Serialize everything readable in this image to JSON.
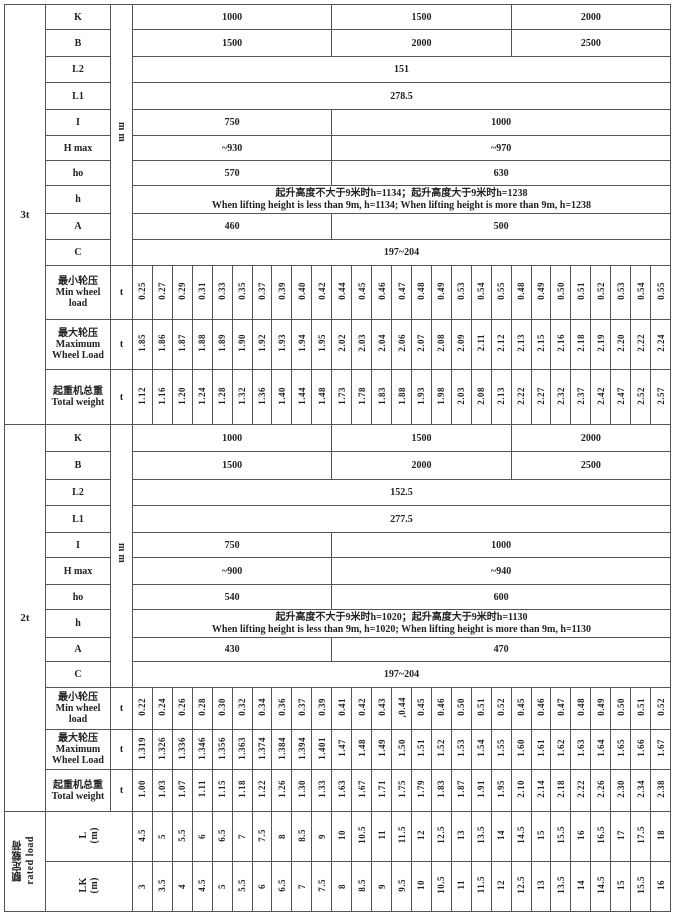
{
  "sections": [
    {
      "load": "3t",
      "unit_mm": "mm",
      "unit_t": "t",
      "dims": [
        {
          "label": "K",
          "values": [
            "1000",
            "1500",
            "2000"
          ]
        },
        {
          "label": "B",
          "values": [
            "1500",
            "2000",
            "2500"
          ]
        },
        {
          "label": "L2",
          "values": [
            "151"
          ]
        },
        {
          "label": "L1",
          "values": [
            "278.5"
          ]
        },
        {
          "label": "I",
          "values": [
            "750",
            "1000"
          ]
        },
        {
          "label": "H max",
          "values": [
            "~930",
            "~970"
          ]
        },
        {
          "label": "ho",
          "values": [
            "570",
            "630"
          ]
        },
        {
          "label": "h",
          "values": [
            "起升高度不大于9米时h=1134；起升高度大于9米时h=1238",
            "When lifting height is less than 9m, h=1134; When lifting height is more than 9m, h=1238"
          ],
          "two_line": true
        },
        {
          "label": "A",
          "values": [
            "460",
            "500"
          ]
        },
        {
          "label": "C",
          "values": [
            "197~204"
          ]
        }
      ],
      "loads": [
        {
          "label_cn": "最小轮压",
          "label_en": "Min wheel load",
          "values": [
            "0.25",
            "0.27",
            "0.29",
            "0.31",
            "0.33",
            "0.35",
            "0.37",
            "0.39",
            "0.40",
            "0.42",
            "0.44",
            "0.45",
            "0.46",
            "0.47",
            "0.48",
            "0.49",
            "0.53",
            "0.54",
            "0.55",
            "0.48",
            "0.49",
            "0.50",
            "0.51",
            "0.52",
            "0.53",
            "0.54",
            "0.55"
          ]
        },
        {
          "label_cn": "最大轮压",
          "label_en": "Maximum Wheel Load",
          "values": [
            "1.85",
            "1.86",
            "1.87",
            "1.88",
            "1.89",
            "1.90",
            "1.92",
            "1.93",
            "1.94",
            "1.95",
            "2.02",
            "2.03",
            "2.04",
            "2.06",
            "2.07",
            "2.08",
            "2.09",
            "2.11",
            "2.12",
            "2.13",
            "2.15",
            "2.16",
            "2.18",
            "2.19",
            "2.20",
            "2.22",
            "2.24"
          ]
        },
        {
          "label_cn": "起重机总重",
          "label_en": "Total weight",
          "values": [
            "1.12",
            "1.16",
            "1.20",
            "1.24",
            "1.28",
            "1.32",
            "1.36",
            "1.40",
            "1.44",
            "1.48",
            "1.73",
            "1.78",
            "1.83",
            "1.88",
            "1.93",
            "1.98",
            "2.03",
            "2.08",
            "2.13",
            "2.22",
            "2.27",
            "2.32",
            "2.37",
            "2.42",
            "2.47",
            "2.52",
            "2.57"
          ]
        }
      ]
    },
    {
      "load": "2t",
      "unit_mm": "mm",
      "unit_t": "t",
      "dims": [
        {
          "label": "K",
          "values": [
            "1000",
            "1500",
            "2000"
          ]
        },
        {
          "label": "B",
          "values": [
            "1500",
            "2000",
            "2500"
          ]
        },
        {
          "label": "L2",
          "values": [
            "152.5"
          ]
        },
        {
          "label": "L1",
          "values": [
            "277.5"
          ]
        },
        {
          "label": "I",
          "values": [
            "750",
            "1000"
          ]
        },
        {
          "label": "H max",
          "values": [
            "~900",
            "~940"
          ]
        },
        {
          "label": "ho",
          "values": [
            "540",
            "600"
          ]
        },
        {
          "label": "h",
          "values": [
            "起升高度不大于9米时h=1020；起升高度大于9米时h=1130",
            "When lifting height is less than 9m, h=1020; When lifting height is more than 9m, h=1130"
          ],
          "two_line": true
        },
        {
          "label": "A",
          "values": [
            "430",
            "470"
          ]
        },
        {
          "label": "C",
          "values": [
            "197~204"
          ]
        }
      ],
      "loads": [
        {
          "label_cn": "最小轮压",
          "label_en": "Min wheel load",
          "values": [
            "0.22",
            "0.24",
            "0.26",
            "0.28",
            "0.30",
            "0.32",
            "0.34",
            "0.36",
            "0.37",
            "0.39",
            "0.41",
            "0.42",
            "0.43",
            ",0.44",
            "0.45",
            "0.46",
            "0.50",
            "0.51",
            "0.52",
            "0.45",
            "0.46",
            "0.47",
            "0.48",
            "0.49",
            "0.50",
            "0.51",
            "0.52"
          ]
        },
        {
          "label_cn": "最大轮压",
          "label_en": "Maximum Wheel Load",
          "values": [
            "1.319",
            "1.326",
            "1.336",
            "1.346",
            "1.356",
            "1.363",
            "1.374",
            "1.384",
            "1.394",
            "1.401",
            "1.47",
            "1.48",
            "1.49",
            "1.50",
            "1.51",
            "1.52",
            "1.53",
            "1.54",
            "1.55",
            "1.60",
            "1.61",
            "1.62",
            "1.63",
            "1.64",
            "1.65",
            "1.66",
            "1.67"
          ]
        },
        {
          "label_cn": "起重机总重",
          "label_en": "Total weight",
          "values": [
            "1.00",
            "1.03",
            "1.07",
            "1.11",
            "1.15",
            "1.18",
            "1.22",
            "1.26",
            "1.30",
            "1.33",
            "1.63",
            "1.67",
            "1.71",
            "1.75",
            "1.79",
            "1.83",
            "1.87",
            "1.91",
            "1.95",
            "2.10",
            "2.14",
            "2.18",
            "2.22",
            "2.26",
            "2.30",
            "2.34",
            "2.38"
          ]
        }
      ]
    }
  ],
  "rated_load": {
    "label_cn": "额定载荷",
    "label_en": "rated load",
    "rows": [
      {
        "label": "L",
        "unit": "(m)",
        "values": [
          "4.5",
          "5",
          "5.5",
          "6",
          "6.5",
          "7",
          "7.5",
          "8",
          "8.5",
          "9",
          "10",
          "10.5",
          "11",
          "11.5",
          "12",
          "12.5",
          "13",
          "13.5",
          "14",
          "14.5",
          "15",
          "15.5",
          "16",
          "16.5",
          "17",
          "17.5",
          "18"
        ]
      },
      {
        "label": "LK",
        "unit": "(m)",
        "values": [
          "3",
          "3.5",
          "4",
          "4.5",
          "5",
          "5.5",
          "6",
          "6.5",
          "7",
          "7.5",
          "8",
          "8.5",
          "9",
          "9.5",
          "10",
          "10.5",
          "11",
          "11.5",
          "12",
          "12.5",
          "13",
          "13.5",
          "14",
          "14.5",
          "15",
          "15.5",
          "16"
        ]
      }
    ]
  }
}
